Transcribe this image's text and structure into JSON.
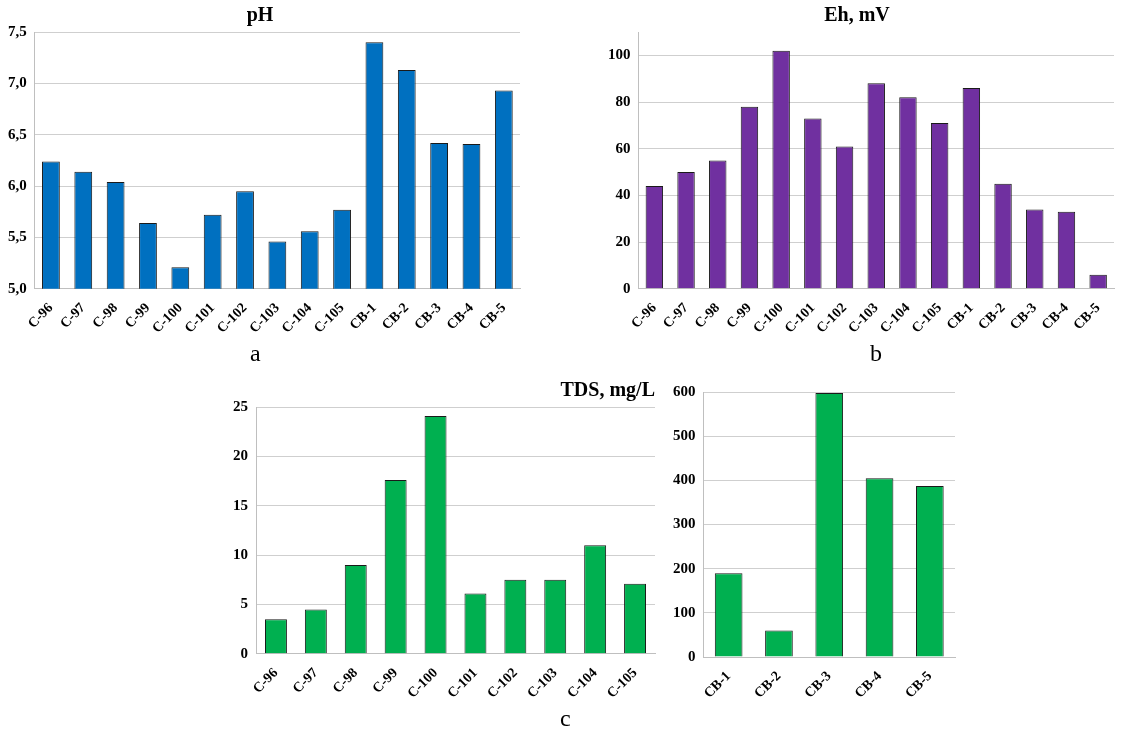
{
  "chart_data": [
    {
      "type": "bar",
      "title": "pH",
      "categories": [
        "C-96",
        "C-97",
        "C-98",
        "C-99",
        "C-100",
        "C-101",
        "C-102",
        "C-103",
        "C-104",
        "C-105",
        "CB-1",
        "CB-2",
        "CB-3",
        "CB-4",
        "CB-5"
      ],
      "values": [
        6.24,
        6.14,
        6.04,
        5.64,
        5.21,
        5.72,
        5.95,
        5.46,
        5.56,
        5.77,
        7.4,
        7.13,
        6.42,
        6.41,
        6.93
      ],
      "color": "#0070c0",
      "ylim": [
        5,
        7.5
      ],
      "yticks": [
        {
          "value": 5,
          "label": "5,0"
        },
        {
          "value": 5.5,
          "label": "5,5"
        },
        {
          "value": 6,
          "label": "6,0"
        },
        {
          "value": 6.5,
          "label": "6,5"
        },
        {
          "value": 7,
          "label": "7,0"
        },
        {
          "value": 7.5,
          "label": "7,5"
        }
      ],
      "grid": "y",
      "annotations": [
        "a"
      ]
    },
    {
      "type": "bar",
      "title": "Eh, mV",
      "categories": [
        "C-96",
        "C-97",
        "C-98",
        "C-99",
        "C-100",
        "C-101",
        "C-102",
        "C-103",
        "C-104",
        "C-105",
        "CB-1",
        "CB-2",
        "CB-3",
        "CB-4",
        "CB-5"
      ],
      "values": [
        44,
        50,
        55,
        78,
        102,
        73,
        61,
        88,
        82,
        71,
        86,
        45,
        34,
        33,
        6
      ],
      "color": "#7030a0",
      "ylim": [
        0,
        110
      ],
      "yticks": [
        0,
        20,
        40,
        60,
        80,
        100
      ],
      "grid": "y",
      "annotations": [
        "b"
      ]
    },
    {
      "type": "bar",
      "title": "TDS, mg/L",
      "categories": [
        "C-96",
        "C-97",
        "C-98",
        "C-99",
        "C-100",
        "C-101",
        "C-102",
        "C-103",
        "C-104",
        "C-105"
      ],
      "values": [
        3.5,
        4.5,
        9,
        17.6,
        24.1,
        6.1,
        7.5,
        7.5,
        11,
        7.1
      ],
      "color": "#00b050",
      "ylim": [
        0,
        25
      ],
      "yticks": [
        0,
        5,
        10,
        15,
        20,
        25
      ],
      "grid": "y",
      "annotations": [
        "c"
      ]
    },
    {
      "type": "bar",
      "categories": [
        "CB-1",
        "CB-2",
        "CB-3",
        "CB-4",
        "CB-5"
      ],
      "values": [
        190,
        60,
        598,
        405,
        387
      ],
      "color": "#00b050",
      "ylim": [
        0,
        600
      ],
      "yticks": [
        0,
        100,
        200,
        300,
        400,
        500,
        600
      ],
      "grid": "y"
    }
  ]
}
